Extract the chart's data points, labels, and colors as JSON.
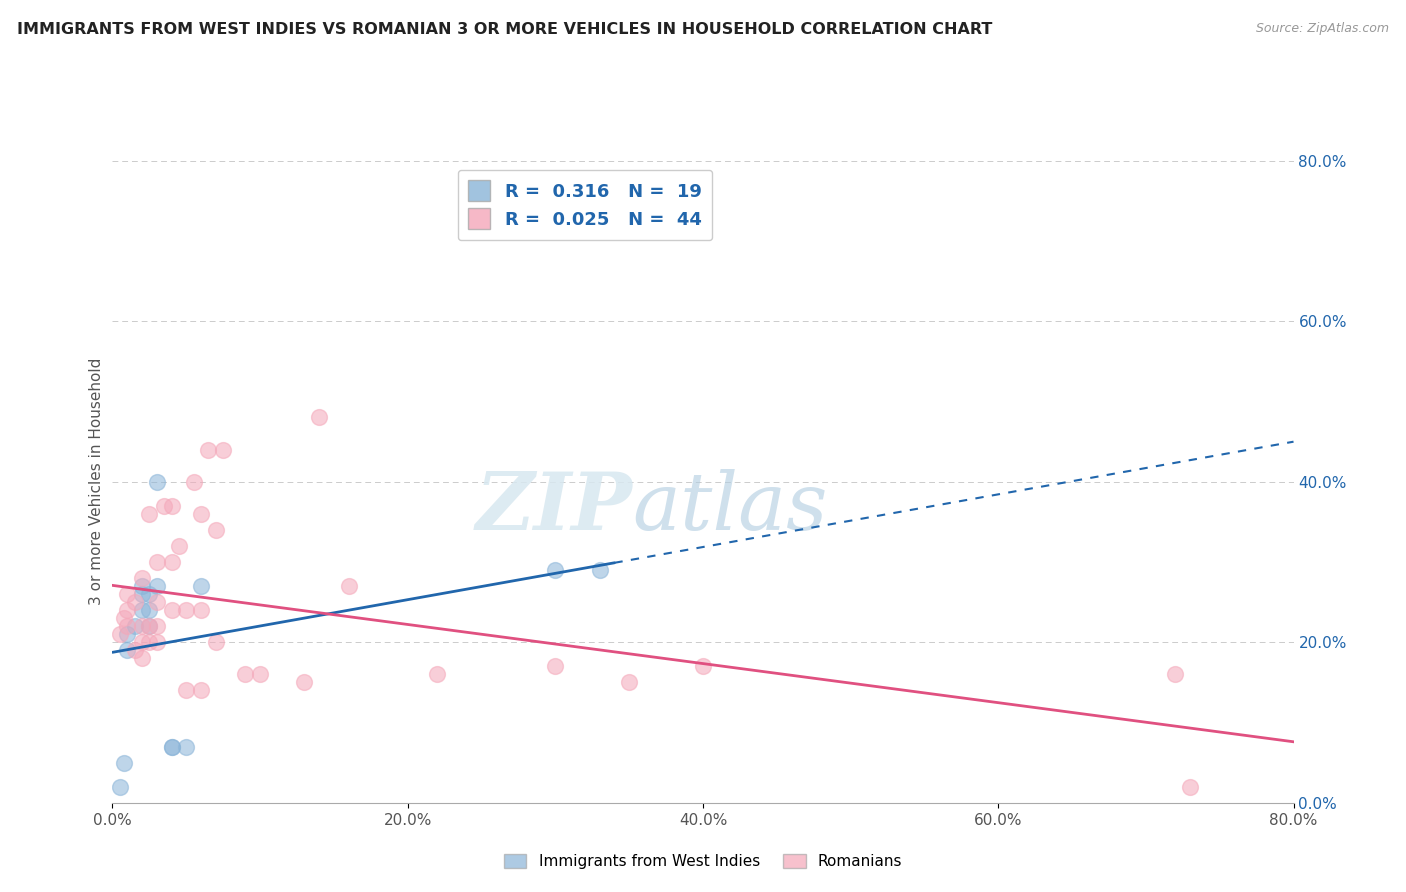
{
  "title": "IMMIGRANTS FROM WEST INDIES VS ROMANIAN 3 OR MORE VEHICLES IN HOUSEHOLD CORRELATION CHART",
  "source": "Source: ZipAtlas.com",
  "ylabel": "3 or more Vehicles in Household",
  "legend_label1": "Immigrants from West Indies",
  "legend_label2": "Romanians",
  "r1": "0.316",
  "n1": "19",
  "r2": "0.025",
  "n2": "44",
  "xlim": [
    0.0,
    0.8
  ],
  "ylim": [
    0.0,
    0.8
  ],
  "right_yticks": [
    0.0,
    0.2,
    0.4,
    0.6,
    0.8
  ],
  "right_ytick_labels": [
    "0.0%",
    "20.0%",
    "40.0%",
    "60.0%",
    "80.0%"
  ],
  "color_blue": "#8ab4d8",
  "color_pink": "#f4a7b9",
  "color_blue_line": "#2166ac",
  "color_pink_line": "#e05080",
  "watermark_zip": "ZIP",
  "watermark_atlas": "atlas",
  "west_indies_x": [
    0.005,
    0.008,
    0.01,
    0.01,
    0.015,
    0.02,
    0.02,
    0.02,
    0.025,
    0.025,
    0.025,
    0.03,
    0.03,
    0.04,
    0.04,
    0.05,
    0.06,
    0.3,
    0.33
  ],
  "west_indies_y": [
    0.02,
    0.05,
    0.19,
    0.21,
    0.22,
    0.24,
    0.26,
    0.27,
    0.22,
    0.24,
    0.26,
    0.27,
    0.4,
    0.07,
    0.07,
    0.07,
    0.27,
    0.29,
    0.29
  ],
  "romanians_x": [
    0.005,
    0.008,
    0.01,
    0.01,
    0.01,
    0.015,
    0.015,
    0.02,
    0.02,
    0.02,
    0.02,
    0.025,
    0.025,
    0.025,
    0.03,
    0.03,
    0.03,
    0.03,
    0.035,
    0.04,
    0.04,
    0.04,
    0.045,
    0.05,
    0.05,
    0.055,
    0.06,
    0.06,
    0.06,
    0.065,
    0.07,
    0.07,
    0.075,
    0.09,
    0.1,
    0.13,
    0.14,
    0.16,
    0.22,
    0.3,
    0.35,
    0.4,
    0.72,
    0.73
  ],
  "romanians_y": [
    0.21,
    0.23,
    0.22,
    0.24,
    0.26,
    0.19,
    0.25,
    0.18,
    0.2,
    0.22,
    0.28,
    0.2,
    0.22,
    0.36,
    0.2,
    0.22,
    0.25,
    0.3,
    0.37,
    0.24,
    0.3,
    0.37,
    0.32,
    0.14,
    0.24,
    0.4,
    0.14,
    0.24,
    0.36,
    0.44,
    0.2,
    0.34,
    0.44,
    0.16,
    0.16,
    0.15,
    0.48,
    0.27,
    0.16,
    0.17,
    0.15,
    0.17,
    0.16,
    0.02
  ]
}
